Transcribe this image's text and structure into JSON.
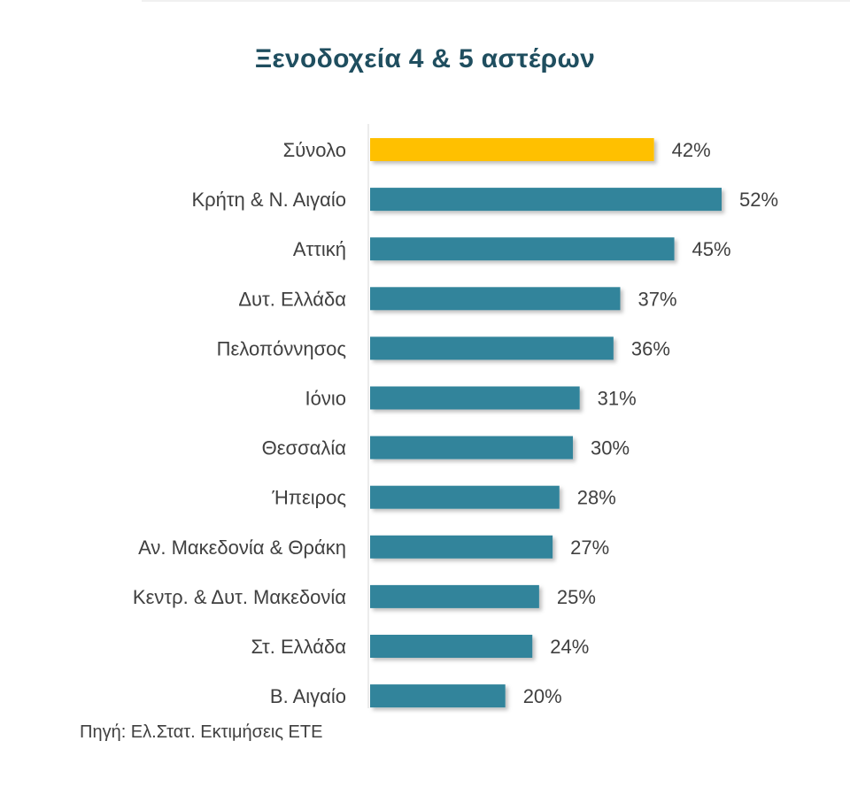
{
  "chart_data": {
    "type": "bar",
    "orientation": "horizontal",
    "title": "Ξενοδοχεία 4 & 5 αστέρων",
    "categories": [
      "Σύνολο",
      "Κρήτη & Ν. Αιγαίο",
      "Αττική",
      "Δυτ. Ελλάδα",
      "Πελοπόννησος",
      "Ιόνιο",
      "Θεσσαλία",
      "Ήπειρος",
      "Αν. Μακεδονία & Θράκη",
      "Κεντρ. & Δυτ. Μακεδονία",
      "Στ. Ελλάδα",
      "Β. Αιγαίο"
    ],
    "values": [
      42,
      52,
      45,
      37,
      36,
      31,
      30,
      28,
      27,
      25,
      24,
      20
    ],
    "value_labels": [
      "42%",
      "52%",
      "45%",
      "37%",
      "36%",
      "31%",
      "30%",
      "28%",
      "27%",
      "25%",
      "24%",
      "20%"
    ],
    "unit": "%",
    "highlight_index": 0,
    "colors": {
      "highlight": "#FFC000",
      "bar": "#31849B",
      "title": "#1F4E5F",
      "text": "#404040",
      "axis": "#D9D9D9"
    },
    "xlim": [
      0,
      52
    ],
    "grid": false,
    "legend": "none"
  },
  "source_note": "Πηγή: Ελ.Στατ. Εκτιμήσεις ΕΤΕ"
}
